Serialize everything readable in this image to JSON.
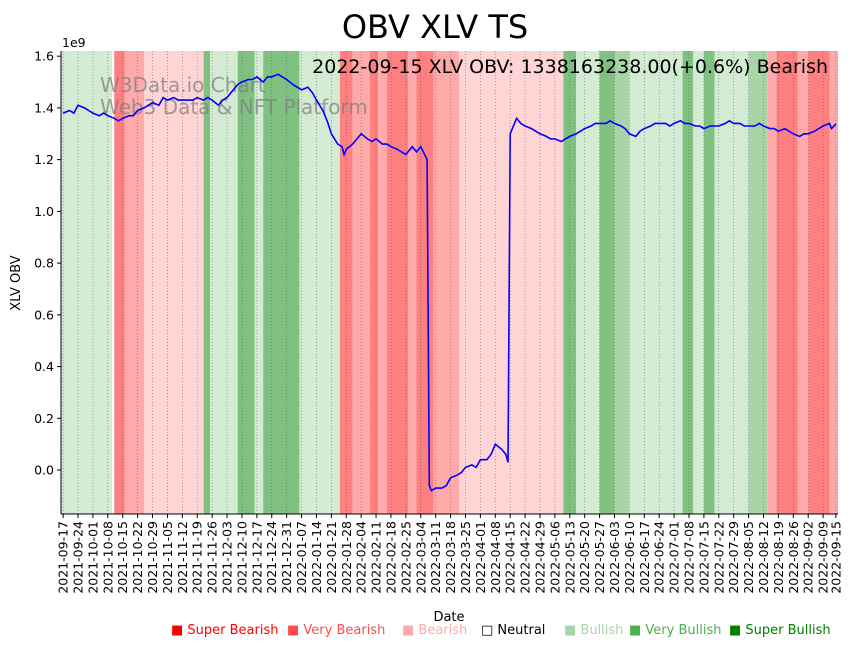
{
  "chart_data": {
    "type": "line",
    "title": "OBV XLV TS",
    "annotation": "2022-09-15 XLV OBV: 1338163238.00(+0.6%) Bearish",
    "watermark_line1": "W3Data.io Chart",
    "watermark_line2": "Web3 Data & NFT Platform",
    "xlabel": "Date",
    "ylabel": "XLV OBV",
    "y_multiplier": "1e9",
    "xlim": [
      "2021-09-16",
      "2022-09-16"
    ],
    "ylim": [
      -0.17,
      1.62
    ],
    "yticks": [
      0.0,
      0.2,
      0.4,
      0.6,
      0.8,
      1.0,
      1.2,
      1.4,
      1.6
    ],
    "ytick_labels": [
      "0.0",
      "0.2",
      "0.4",
      "0.6",
      "0.8",
      "1.0",
      "1.2",
      "1.4",
      "1.6"
    ],
    "xtick_labels": [
      "2021-09-17",
      "2021-09-24",
      "2021-10-01",
      "2021-10-08",
      "2021-10-15",
      "2021-10-22",
      "2021-10-29",
      "2021-11-05",
      "2021-11-12",
      "2021-11-19",
      "2021-11-26",
      "2021-12-03",
      "2021-12-10",
      "2021-12-17",
      "2021-12-24",
      "2021-12-31",
      "2022-01-07",
      "2022-01-14",
      "2022-01-21",
      "2022-01-28",
      "2022-02-04",
      "2022-02-11",
      "2022-02-18",
      "2022-02-25",
      "2022-03-04",
      "2022-03-11",
      "2022-03-18",
      "2022-03-25",
      "2022-04-01",
      "2022-04-08",
      "2022-04-15",
      "2022-04-22",
      "2022-04-29",
      "2022-05-06",
      "2022-05-13",
      "2022-05-20",
      "2022-05-27",
      "2022-06-03",
      "2022-06-10",
      "2022-06-17",
      "2022-06-24",
      "2022-07-01",
      "2022-07-08",
      "2022-07-15",
      "2022-07-22",
      "2022-07-29",
      "2022-08-05",
      "2022-08-12",
      "2022-08-19",
      "2022-08-26",
      "2022-09-02",
      "2022-09-09",
      "2022-09-15"
    ],
    "series": [
      {
        "color": "#0000ff",
        "points": [
          [
            "2021-09-17",
            1.38
          ],
          [
            "2021-09-20",
            1.39
          ],
          [
            "2021-09-22",
            1.38
          ],
          [
            "2021-09-24",
            1.41
          ],
          [
            "2021-09-27",
            1.4
          ],
          [
            "2021-09-29",
            1.39
          ],
          [
            "2021-10-01",
            1.38
          ],
          [
            "2021-10-04",
            1.37
          ],
          [
            "2021-10-06",
            1.38
          ],
          [
            "2021-10-08",
            1.37
          ],
          [
            "2021-10-11",
            1.36
          ],
          [
            "2021-10-13",
            1.35
          ],
          [
            "2021-10-15",
            1.36
          ],
          [
            "2021-10-18",
            1.37
          ],
          [
            "2021-10-20",
            1.37
          ],
          [
            "2021-10-22",
            1.39
          ],
          [
            "2021-10-25",
            1.4
          ],
          [
            "2021-10-27",
            1.41
          ],
          [
            "2021-10-29",
            1.42
          ],
          [
            "2021-11-01",
            1.41
          ],
          [
            "2021-11-03",
            1.44
          ],
          [
            "2021-11-05",
            1.43
          ],
          [
            "2021-11-08",
            1.44
          ],
          [
            "2021-11-10",
            1.43
          ],
          [
            "2021-11-12",
            1.43
          ],
          [
            "2021-11-15",
            1.43
          ],
          [
            "2021-11-17",
            1.43
          ],
          [
            "2021-11-19",
            1.44
          ],
          [
            "2021-11-22",
            1.43
          ],
          [
            "2021-11-24",
            1.44
          ],
          [
            "2021-11-26",
            1.43
          ],
          [
            "2021-11-29",
            1.41
          ],
          [
            "2021-12-01",
            1.43
          ],
          [
            "2021-12-03",
            1.44
          ],
          [
            "2021-12-06",
            1.47
          ],
          [
            "2021-12-08",
            1.49
          ],
          [
            "2021-12-10",
            1.5
          ],
          [
            "2021-12-13",
            1.51
          ],
          [
            "2021-12-15",
            1.51
          ],
          [
            "2021-12-17",
            1.52
          ],
          [
            "2021-12-20",
            1.5
          ],
          [
            "2021-12-22",
            1.52
          ],
          [
            "2021-12-24",
            1.52
          ],
          [
            "2021-12-27",
            1.53
          ],
          [
            "2021-12-29",
            1.52
          ],
          [
            "2021-12-31",
            1.51
          ],
          [
            "2022-01-03",
            1.49
          ],
          [
            "2022-01-05",
            1.48
          ],
          [
            "2022-01-07",
            1.47
          ],
          [
            "2022-01-10",
            1.48
          ],
          [
            "2022-01-12",
            1.46
          ],
          [
            "2022-01-14",
            1.43
          ],
          [
            "2022-01-17",
            1.39
          ],
          [
            "2022-01-19",
            1.35
          ],
          [
            "2022-01-21",
            1.3
          ],
          [
            "2022-01-24",
            1.26
          ],
          [
            "2022-01-26",
            1.25
          ],
          [
            "2022-01-27",
            1.22
          ],
          [
            "2022-01-28",
            1.24
          ],
          [
            "2022-01-31",
            1.26
          ],
          [
            "2022-02-02",
            1.28
          ],
          [
            "2022-02-04",
            1.3
          ],
          [
            "2022-02-07",
            1.28
          ],
          [
            "2022-02-09",
            1.27
          ],
          [
            "2022-02-11",
            1.28
          ],
          [
            "2022-02-14",
            1.26
          ],
          [
            "2022-02-16",
            1.26
          ],
          [
            "2022-02-18",
            1.25
          ],
          [
            "2022-02-21",
            1.24
          ],
          [
            "2022-02-23",
            1.23
          ],
          [
            "2022-02-25",
            1.22
          ],
          [
            "2022-02-28",
            1.25
          ],
          [
            "2022-03-02",
            1.23
          ],
          [
            "2022-03-04",
            1.25
          ],
          [
            "2022-03-07",
            1.2
          ],
          [
            "2022-03-08",
            -0.06
          ],
          [
            "2022-03-09",
            -0.08
          ],
          [
            "2022-03-11",
            -0.07
          ],
          [
            "2022-03-14",
            -0.07
          ],
          [
            "2022-03-16",
            -0.06
          ],
          [
            "2022-03-18",
            -0.03
          ],
          [
            "2022-03-21",
            -0.02
          ],
          [
            "2022-03-23",
            -0.01
          ],
          [
            "2022-03-25",
            0.01
          ],
          [
            "2022-03-28",
            0.02
          ],
          [
            "2022-03-30",
            0.01
          ],
          [
            "2022-04-01",
            0.04
          ],
          [
            "2022-04-04",
            0.04
          ],
          [
            "2022-04-06",
            0.06
          ],
          [
            "2022-04-08",
            0.1
          ],
          [
            "2022-04-11",
            0.08
          ],
          [
            "2022-04-13",
            0.06
          ],
          [
            "2022-04-14",
            0.03
          ],
          [
            "2022-04-15",
            1.3
          ],
          [
            "2022-04-18",
            1.36
          ],
          [
            "2022-04-20",
            1.34
          ],
          [
            "2022-04-22",
            1.33
          ],
          [
            "2022-04-25",
            1.32
          ],
          [
            "2022-04-27",
            1.31
          ],
          [
            "2022-04-29",
            1.3
          ],
          [
            "2022-05-02",
            1.29
          ],
          [
            "2022-05-04",
            1.28
          ],
          [
            "2022-05-06",
            1.28
          ],
          [
            "2022-05-09",
            1.27
          ],
          [
            "2022-05-11",
            1.28
          ],
          [
            "2022-05-13",
            1.29
          ],
          [
            "2022-05-16",
            1.3
          ],
          [
            "2022-05-18",
            1.31
          ],
          [
            "2022-05-20",
            1.32
          ],
          [
            "2022-05-23",
            1.33
          ],
          [
            "2022-05-25",
            1.34
          ],
          [
            "2022-05-27",
            1.34
          ],
          [
            "2022-05-30",
            1.34
          ],
          [
            "2022-06-01",
            1.35
          ],
          [
            "2022-06-03",
            1.34
          ],
          [
            "2022-06-06",
            1.33
          ],
          [
            "2022-06-08",
            1.32
          ],
          [
            "2022-06-10",
            1.3
          ],
          [
            "2022-06-13",
            1.29
          ],
          [
            "2022-06-15",
            1.31
          ],
          [
            "2022-06-17",
            1.32
          ],
          [
            "2022-06-20",
            1.33
          ],
          [
            "2022-06-22",
            1.34
          ],
          [
            "2022-06-24",
            1.34
          ],
          [
            "2022-06-27",
            1.34
          ],
          [
            "2022-06-29",
            1.33
          ],
          [
            "2022-07-01",
            1.34
          ],
          [
            "2022-07-04",
            1.35
          ],
          [
            "2022-07-06",
            1.34
          ],
          [
            "2022-07-08",
            1.34
          ],
          [
            "2022-07-11",
            1.33
          ],
          [
            "2022-07-13",
            1.33
          ],
          [
            "2022-07-15",
            1.32
          ],
          [
            "2022-07-18",
            1.33
          ],
          [
            "2022-07-20",
            1.33
          ],
          [
            "2022-07-22",
            1.33
          ],
          [
            "2022-07-25",
            1.34
          ],
          [
            "2022-07-27",
            1.35
          ],
          [
            "2022-07-29",
            1.34
          ],
          [
            "2022-08-01",
            1.34
          ],
          [
            "2022-08-03",
            1.33
          ],
          [
            "2022-08-05",
            1.33
          ],
          [
            "2022-08-08",
            1.33
          ],
          [
            "2022-08-10",
            1.34
          ],
          [
            "2022-08-12",
            1.33
          ],
          [
            "2022-08-15",
            1.32
          ],
          [
            "2022-08-17",
            1.32
          ],
          [
            "2022-08-19",
            1.31
          ],
          [
            "2022-08-22",
            1.32
          ],
          [
            "2022-08-24",
            1.31
          ],
          [
            "2022-08-26",
            1.3
          ],
          [
            "2022-08-29",
            1.29
          ],
          [
            "2022-08-31",
            1.3
          ],
          [
            "2022-09-02",
            1.3
          ],
          [
            "2022-09-05",
            1.31
          ],
          [
            "2022-09-07",
            1.32
          ],
          [
            "2022-09-09",
            1.33
          ],
          [
            "2022-09-12",
            1.34
          ],
          [
            "2022-09-13",
            1.32
          ],
          [
            "2022-09-15",
            1.338
          ]
        ]
      }
    ],
    "background_bands": [
      {
        "start": "2021-09-16",
        "end": "2021-10-10",
        "level": "Bullish"
      },
      {
        "start": "2021-10-11",
        "end": "2021-10-16",
        "level": "Very Bearish"
      },
      {
        "start": "2021-10-16",
        "end": "2021-10-25",
        "level": "Bearish"
      },
      {
        "start": "2021-10-25",
        "end": "2021-11-22",
        "level": "Neutral Bearish"
      },
      {
        "start": "2021-11-22",
        "end": "2021-11-25",
        "level": "Very Bullish"
      },
      {
        "start": "2021-11-25",
        "end": "2021-12-08",
        "level": "Bullish"
      },
      {
        "start": "2021-12-08",
        "end": "2021-12-16",
        "level": "Very Bullish"
      },
      {
        "start": "2021-12-16",
        "end": "2021-12-20",
        "level": "Bullish"
      },
      {
        "start": "2021-12-20",
        "end": "2022-01-06",
        "level": "Very Bullish"
      },
      {
        "start": "2022-01-06",
        "end": "2022-01-25",
        "level": "Bullish"
      },
      {
        "start": "2022-01-25",
        "end": "2022-01-31",
        "level": "Very Bearish"
      },
      {
        "start": "2022-01-31",
        "end": "2022-02-08",
        "level": "Bearish"
      },
      {
        "start": "2022-02-08",
        "end": "2022-02-12",
        "level": "Very Bearish"
      },
      {
        "start": "2022-02-12",
        "end": "2022-02-16",
        "level": "Bearish"
      },
      {
        "start": "2022-02-16",
        "end": "2022-02-26",
        "level": "Very Bearish"
      },
      {
        "start": "2022-02-26",
        "end": "2022-03-02",
        "level": "Bearish"
      },
      {
        "start": "2022-03-02",
        "end": "2022-03-10",
        "level": "Very Bearish"
      },
      {
        "start": "2022-03-10",
        "end": "2022-03-22",
        "level": "Bearish"
      },
      {
        "start": "2022-03-22",
        "end": "2022-04-11",
        "level": "Neutral Bearish"
      },
      {
        "start": "2022-04-11",
        "end": "2022-05-10",
        "level": "Neutral Bearish"
      },
      {
        "start": "2022-05-10",
        "end": "2022-05-16",
        "level": "Very Bullish"
      },
      {
        "start": "2022-05-16",
        "end": "2022-05-27",
        "level": "Bullish"
      },
      {
        "start": "2022-05-27",
        "end": "2022-06-03",
        "level": "Very Bullish"
      },
      {
        "start": "2022-06-03",
        "end": "2022-06-10",
        "level": "Bullish Mid"
      },
      {
        "start": "2022-06-10",
        "end": "2022-07-05",
        "level": "Bullish"
      },
      {
        "start": "2022-07-05",
        "end": "2022-07-10",
        "level": "Very Bullish"
      },
      {
        "start": "2022-07-10",
        "end": "2022-07-15",
        "level": "Bullish"
      },
      {
        "start": "2022-07-15",
        "end": "2022-07-20",
        "level": "Very Bullish"
      },
      {
        "start": "2022-07-20",
        "end": "2022-08-05",
        "level": "Bullish"
      },
      {
        "start": "2022-08-05",
        "end": "2022-08-14",
        "level": "Bullish Mid"
      },
      {
        "start": "2022-08-14",
        "end": "2022-08-18",
        "level": "Bearish"
      },
      {
        "start": "2022-08-18",
        "end": "2022-08-28",
        "level": "Very Bearish"
      },
      {
        "start": "2022-08-28",
        "end": "2022-09-02",
        "level": "Bearish"
      },
      {
        "start": "2022-09-02",
        "end": "2022-09-12",
        "level": "Very Bearish"
      },
      {
        "start": "2022-09-12",
        "end": "2022-09-16",
        "level": "Bearish"
      }
    ],
    "band_colors": {
      "Very Bearish": "#ff8080",
      "Bearish": "#ffaaaa",
      "Neutral Bearish": "#ffd4d4",
      "Bullish": "#d3ead3",
      "Bullish Mid": "#a8d5a8",
      "Very Bullish": "#80c080"
    },
    "legend": {
      "placement": "bottom-right",
      "entries": [
        {
          "label": "Super Bearish",
          "color": "#ff0000",
          "marker": "■"
        },
        {
          "label": "Very Bearish",
          "color": "#ff4d4d",
          "marker": "■"
        },
        {
          "label": "Bearish",
          "color": "#ffaaaa",
          "marker": "■"
        },
        {
          "label": "Neutral",
          "color": "#000000",
          "marker": "□"
        },
        {
          "label": "Bullish",
          "color": "#a8d5a8",
          "marker": "■"
        },
        {
          "label": "Very Bullish",
          "color": "#4caf50",
          "marker": "■"
        },
        {
          "label": "Super Bullish",
          "color": "#008000",
          "marker": "■"
        }
      ]
    }
  }
}
